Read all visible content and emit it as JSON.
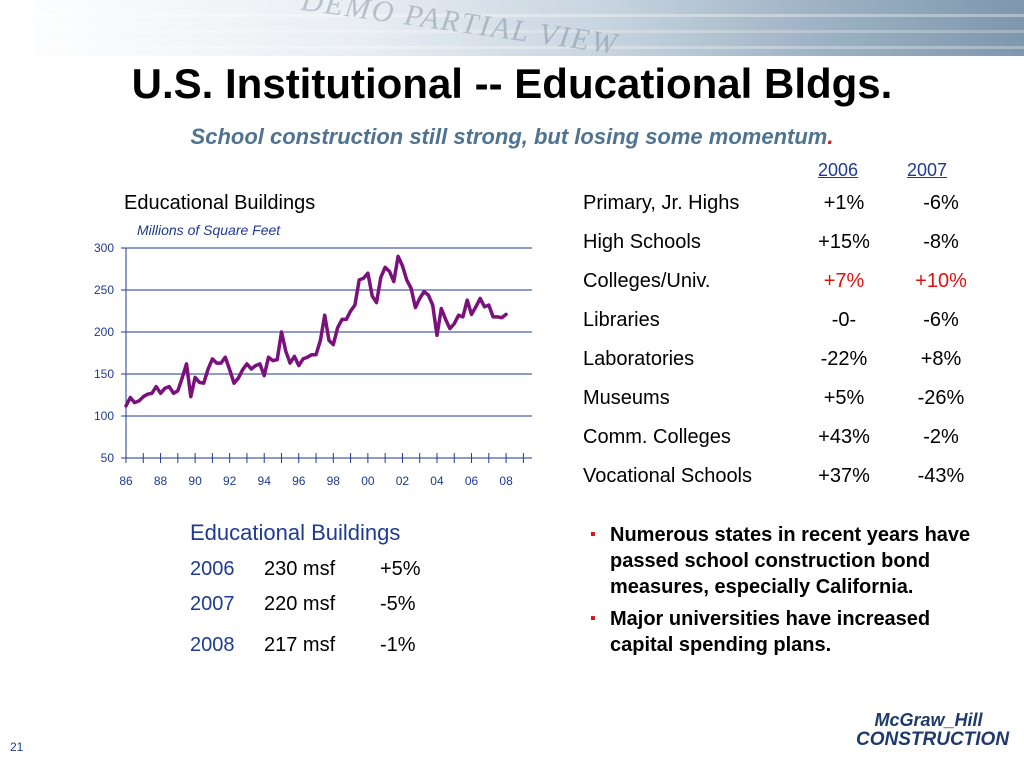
{
  "slide": {
    "title": "U.S. Institutional -- Educational Bldgs.",
    "subtitle": "School construction still strong, but losing some momentum",
    "subtitle_period": ".",
    "page_number": "21"
  },
  "banner": {
    "watermark": "DEMO PARTIAL VIEW"
  },
  "segments": {
    "year_headers": [
      "2006",
      "2007"
    ],
    "rows": [
      {
        "name": "Primary, Jr. Highs",
        "v2006": "+1%",
        "v2007": "-6%",
        "highlight": false
      },
      {
        "name": "High Schools",
        "v2006": "+15%",
        "v2007": "-8%",
        "highlight": false
      },
      {
        "name": "Colleges/Univ.",
        "v2006": "+7%",
        "v2007": "+10%",
        "highlight": true
      },
      {
        "name": "Libraries",
        "v2006": "-0-",
        "v2007": "-6%",
        "highlight": false
      },
      {
        "name": "Laboratories",
        "v2006": "-22%",
        "v2007": "+8%",
        "highlight": false
      },
      {
        "name": "Museums",
        "v2006": "+5%",
        "v2007": "-26%",
        "highlight": false
      },
      {
        "name": "Comm. Colleges",
        "v2006": "+43%",
        "v2007": "-2%",
        "highlight": false
      },
      {
        "name": "Vocational Schools",
        "v2006": "+37%",
        "v2007": "-43%",
        "highlight": false
      }
    ]
  },
  "summary": {
    "title": "Educational Buildings",
    "rows": [
      {
        "year": "2006",
        "value": "230 msf",
        "change": "+5%"
      },
      {
        "year": "2007",
        "value": "220 msf",
        "change": "-5%"
      },
      {
        "year": "2008",
        "value": "217 msf",
        "change": "-1%"
      }
    ]
  },
  "bullets": [
    "Numerous states in recent years have passed school construction bond measures, especially California.",
    "Major universities have increased capital spending plans."
  ],
  "logo": {
    "line1": "McGraw_Hill",
    "line2": "CONSTRUCTION"
  },
  "colors": {
    "line": "#7a117c",
    "navy": "#1f3a93",
    "accent_red": "#e01010",
    "subtitle": "#4f7390"
  },
  "chart_data": {
    "type": "line",
    "title": "Educational Buildings",
    "ylabel": "Millions of Square Feet",
    "xlabel": "",
    "ylim": [
      50,
      300
    ],
    "yticks": [
      50,
      100,
      150,
      200,
      250,
      300
    ],
    "xlim": [
      1986,
      2009.5
    ],
    "xticks": [
      1986,
      1988,
      1990,
      1992,
      1994,
      1996,
      1998,
      2000,
      2002,
      2004,
      2006,
      2008
    ],
    "xtick_labels": [
      "86",
      "88",
      "90",
      "92",
      "94",
      "96",
      "98",
      "00",
      "02",
      "04",
      "06",
      "08"
    ],
    "grid": "horizontal",
    "series": [
      {
        "x": [
          1986.0,
          1986.25,
          1986.5,
          1986.75,
          1987.0,
          1987.25,
          1987.5,
          1987.75,
          1988.0,
          1988.25,
          1988.5,
          1988.75,
          1989.0,
          1989.25,
          1989.5,
          1989.75,
          1990.0,
          1990.25,
          1990.5,
          1990.75,
          1991.0,
          1991.25,
          1991.5,
          1991.75,
          1992.0,
          1992.25,
          1992.5,
          1992.75,
          1993.0,
          1993.25,
          1993.5,
          1993.75,
          1994.0,
          1994.25,
          1994.5,
          1994.75,
          1995.0,
          1995.25,
          1995.5,
          1995.75,
          1996.0,
          1996.25,
          1996.5,
          1996.75,
          1997.0,
          1997.25,
          1997.5,
          1997.75,
          1998.0,
          1998.25,
          1998.5,
          1998.75,
          1999.0,
          1999.25,
          1999.5,
          1999.75,
          2000.0,
          2000.25,
          2000.5,
          2000.75,
          2001.0,
          2001.25,
          2001.5,
          2001.75,
          2002.0,
          2002.25,
          2002.5,
          2002.75,
          2003.0,
          2003.25,
          2003.5,
          2003.75,
          2004.0,
          2004.25,
          2004.5,
          2004.75,
          2005.0,
          2005.25,
          2005.5,
          2005.75,
          2006.0,
          2006.25,
          2006.5,
          2006.75,
          2007.0,
          2007.25,
          2007.5,
          2007.75,
          2008.0
        ],
        "values": [
          112,
          122,
          116,
          118,
          123,
          126,
          127,
          135,
          127,
          133,
          135,
          127,
          130,
          145,
          162,
          123,
          146,
          140,
          139,
          156,
          168,
          163,
          163,
          170,
          155,
          139,
          145,
          155,
          162,
          156,
          160,
          162,
          148,
          170,
          166,
          167,
          200,
          177,
          163,
          171,
          160,
          168,
          170,
          173,
          173,
          190,
          220,
          190,
          185,
          205,
          215,
          215,
          225,
          232,
          262,
          264,
          270,
          243,
          235,
          265,
          277,
          272,
          260,
          290,
          279,
          262,
          252,
          229,
          240,
          248,
          244,
          232,
          196,
          228,
          215,
          204,
          210,
          220,
          218,
          238,
          221,
          230,
          240,
          230,
          232,
          218,
          218,
          217,
          221
        ]
      }
    ]
  }
}
